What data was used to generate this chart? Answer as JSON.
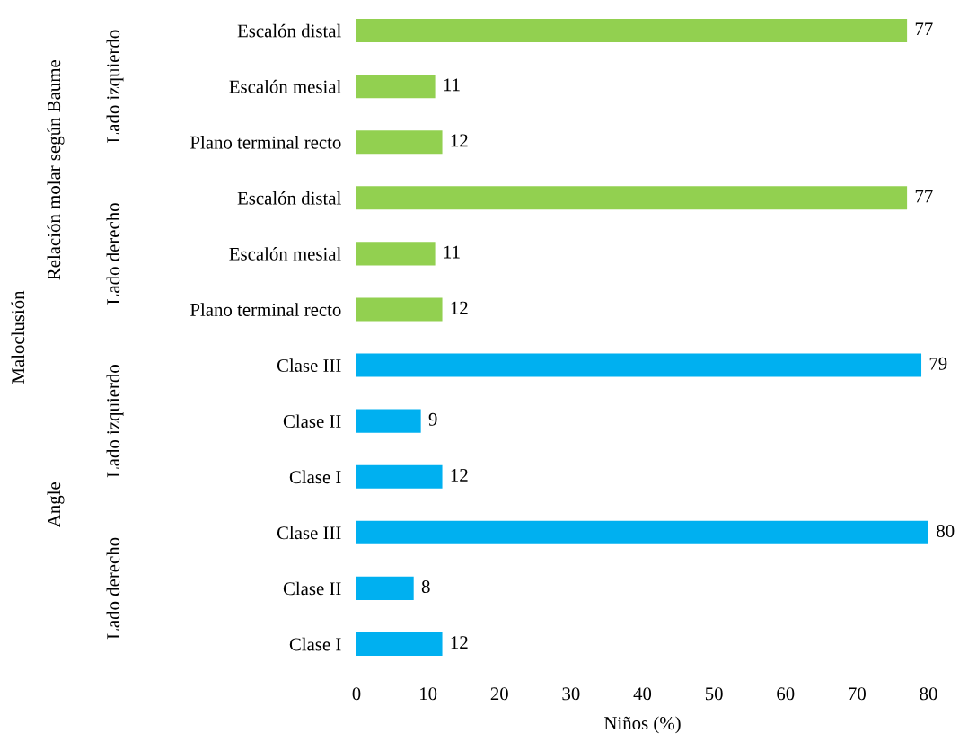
{
  "chart_data": {
    "type": "bar",
    "orientation": "horizontal",
    "categories": [
      "Escalón distal",
      "Escalón mesial",
      "Plano terminal recto",
      "Escalón distal",
      "Escalón mesial",
      "Plano terminal recto",
      "Clase III",
      "Clase II",
      "Clase I",
      "Clase III",
      "Clase II",
      "Clase I"
    ],
    "values": [
      77,
      11,
      12,
      77,
      11,
      12,
      79,
      9,
      12,
      80,
      8,
      12
    ],
    "colors": [
      "#92d050",
      "#92d050",
      "#92d050",
      "#92d050",
      "#92d050",
      "#92d050",
      "#00b0f0",
      "#00b0f0",
      "#00b0f0",
      "#00b0f0",
      "#00b0f0",
      "#00b0f0"
    ],
    "xlim": [
      0,
      80
    ],
    "xticks": [
      0,
      10,
      20,
      30,
      40,
      50,
      60,
      70,
      80
    ],
    "xlabel": "Niños (%)",
    "annotations": [
      "Lado izquierdo",
      "Lado derecho",
      "Lado izquierdo",
      "Lado derecho",
      "Relación molar según Baume",
      "Angle",
      "Maloclusión"
    ],
    "data_labels": true,
    "grid": false,
    "legend": false
  }
}
